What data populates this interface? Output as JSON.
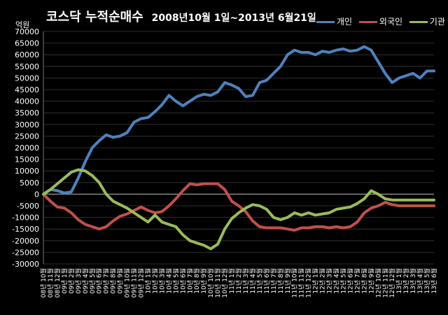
{
  "chart_data": {
    "type": "line",
    "title": "코스닥  누적순매수",
    "subtitle": "2008년10월 1일~2013년 6월21일",
    "ylabel": "억원",
    "xlabel": "",
    "ylim": [
      -30000,
      70000
    ],
    "yticks": [
      -30000,
      -25000,
      -20000,
      -15000,
      -10000,
      -5000,
      0,
      5000,
      10000,
      15000,
      20000,
      25000,
      30000,
      35000,
      40000,
      45000,
      50000,
      55000,
      60000,
      65000,
      70000
    ],
    "grid": true,
    "legend_position": "top-right",
    "x_months": [
      "08년10월",
      "08년11월",
      "08년12월",
      "09년1월",
      "09년2월",
      "09년3월",
      "09년4월",
      "09년5월",
      "09년6월",
      "09년7월",
      "09년8월",
      "09년9월",
      "09년10월",
      "09년11월",
      "09년12월",
      "10년1월",
      "10년2월",
      "10년3월",
      "10년4월",
      "10년5월",
      "10년6월",
      "10년7월",
      "10년8월",
      "10년9월",
      "10년10월",
      "10년11월",
      "10년12월",
      "11년1월",
      "11년2월",
      "11년3월",
      "11년4월",
      "11년5월",
      "11년6월",
      "11년7월",
      "11년8월",
      "11년9월",
      "11년10월",
      "11년11월",
      "11년12월",
      "12년1월",
      "12년2월",
      "12년3월",
      "12년4월",
      "12년5월",
      "12년6월",
      "12년7월",
      "12년8월",
      "12년9월",
      "12년10월",
      "12년11월",
      "12년12월",
      "13년1월",
      "13년2월",
      "13년3월",
      "13년4월",
      "13년5월",
      "13년6월"
    ],
    "x_tick_labels": [
      "08년 10월",
      "08년 11월",
      "08년 12월",
      "09년 1월",
      "09년 2월",
      "09년 3월",
      "09년 4월",
      "09년 5월",
      "09년 6월",
      "09년 7월",
      "09년 8월",
      "09년 9월",
      "09년 10월",
      "09년 11월",
      "09년 12월",
      "10년 1월",
      "10년 2월",
      "10년 3월",
      "10년 4월",
      "10년 5월",
      "10년 6월",
      "10년 7월",
      "10년 8월",
      "10년 9월",
      "10년 10월",
      "10년 11월",
      "10년 12월",
      "11년 1월",
      "11년 2월",
      "11년 3월",
      "11년 4월",
      "11년 5월",
      "11년 6월",
      "11년 7월",
      "11년 8월",
      "11년 9월",
      "11년 10월",
      "11년 11월",
      "11년 12월",
      "12년 1월",
      "12년 2월",
      "12년 3월",
      "12년 4월",
      "12년 5월",
      "12년 6월",
      "12년 7월",
      "12년 8월",
      "12년 9월",
      "12년 10월",
      "12년 11월",
      "12년 12월",
      "13년 1월",
      "13년 2월",
      "13년 3월",
      "13년 4월",
      "13년 5월",
      "13년 6월"
    ],
    "series": [
      {
        "name": "개인",
        "color": "#4f81bd",
        "values": [
          0,
          2000,
          1500,
          500,
          1000,
          7000,
          14000,
          20000,
          23000,
          25500,
          24500,
          25000,
          26500,
          31000,
          32500,
          33000,
          35500,
          38500,
          42500,
          40000,
          38000,
          40000,
          42000,
          43000,
          42500,
          44000,
          48000,
          47000,
          45500,
          42000,
          42500,
          48000,
          49000,
          52000,
          55000,
          60000,
          62000,
          61000,
          61000,
          60000,
          61500,
          61000,
          62000,
          62500,
          61500,
          62000,
          63500,
          62000,
          57000,
          52000,
          48000,
          50000,
          51000,
          52000,
          50000,
          53000,
          53000
        ]
      },
      {
        "name": "외국인",
        "color": "#c0504d",
        "values": [
          0,
          -3000,
          -5500,
          -6000,
          -8000,
          -11000,
          -13000,
          -14000,
          -15000,
          -14000,
          -11500,
          -9500,
          -8500,
          -7000,
          -5500,
          -7000,
          -8000,
          -7500,
          -5000,
          -2000,
          1500,
          4500,
          4000,
          4500,
          4500,
          4500,
          2000,
          -3000,
          -5000,
          -7500,
          -11500,
          -14000,
          -14500,
          -14500,
          -14500,
          -15000,
          -15500,
          -14500,
          -14500,
          -14000,
          -14000,
          -14500,
          -14000,
          -14500,
          -14000,
          -12000,
          -8000,
          -6000,
          -5000,
          -3500,
          -4500,
          -5000,
          -5000,
          -5000,
          -5000,
          -5000,
          -5000
        ]
      },
      {
        "name": "기관",
        "color": "#9bbb59",
        "values": [
          0,
          2000,
          4500,
          7000,
          9500,
          10500,
          10000,
          8000,
          5000,
          0,
          -3000,
          -4500,
          -6000,
          -8000,
          -10000,
          -12000,
          -9000,
          -12000,
          -13000,
          -14000,
          -17500,
          -20000,
          -21000,
          -22000,
          -23500,
          -21500,
          -15000,
          -10500,
          -8000,
          -6000,
          -4500,
          -5000,
          -6500,
          -10000,
          -11000,
          -10000,
          -8000,
          -9000,
          -8000,
          -9000,
          -8500,
          -8000,
          -6500,
          -6000,
          -5500,
          -4000,
          -2000,
          1500,
          0,
          -2000,
          -2500,
          -2500,
          -2500,
          -2500,
          -2500,
          -2500,
          -2500
        ]
      }
    ]
  }
}
